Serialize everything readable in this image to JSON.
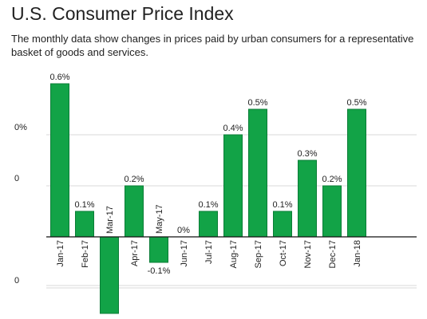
{
  "header": {
    "title": "U.S. Consumer Price Index",
    "subtitle": "The monthly data show changes in prices paid by urban consumers for a representative basket of goods and services."
  },
  "chart_data": {
    "type": "bar",
    "title": "U.S. Consumer Price Index",
    "subtitle": "The monthly data show changes in prices paid by urban consumers for a representative basket of goods and services.",
    "categories": [
      "Jan-17",
      "Feb-17",
      "Mar-17",
      "Apr-17",
      "May-17",
      "Jun-17",
      "Jul-17",
      "Aug-17",
      "Sep-17",
      "Oct-17",
      "Nov-17",
      "Dec-17",
      "Jan-18"
    ],
    "values": [
      0.6,
      0.1,
      -0.3,
      0.2,
      -0.1,
      0.0,
      0.1,
      0.4,
      0.5,
      0.1,
      0.3,
      0.2,
      0.5
    ],
    "data_labels": [
      "0.6%",
      "0.1%",
      "",
      "0.2%",
      "-0.1%",
      "0%",
      "0.1%",
      "0.4%",
      "0.5%",
      "0.1%",
      "0.3%",
      "0.2%",
      "0.5%"
    ],
    "ytick_labels": [
      {
        "value": 0.4,
        "label": "0%"
      },
      {
        "value": 0.2,
        "label": "0"
      },
      {
        "value": -0.2,
        "label": "0"
      }
    ],
    "ylim": [
      -0.3,
      0.6
    ],
    "grid": true,
    "legend": "none",
    "bar_color": "#12a347"
  }
}
